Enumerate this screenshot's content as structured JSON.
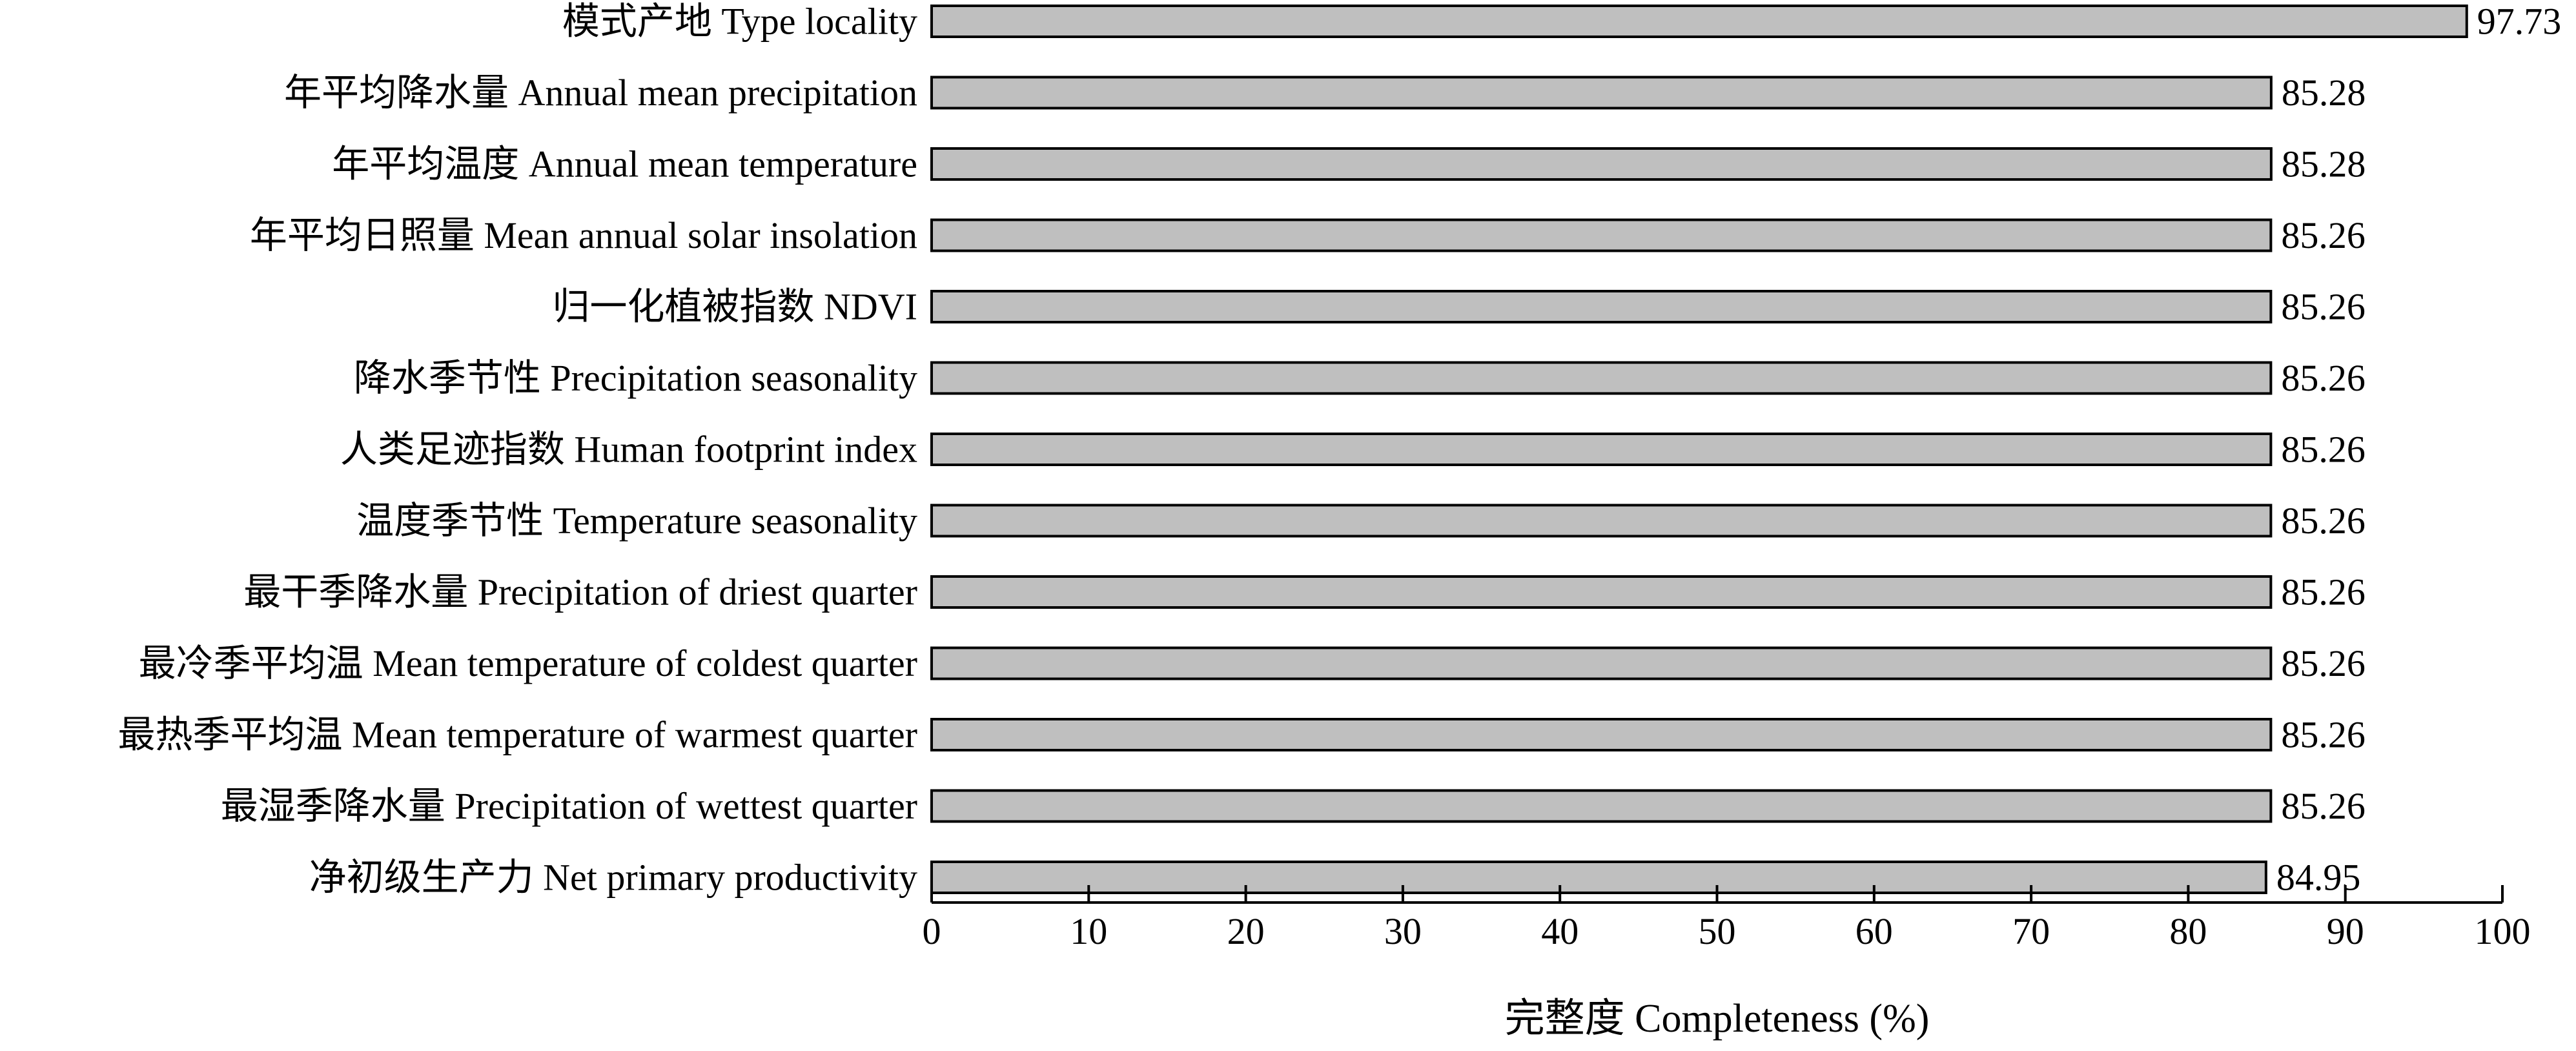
{
  "chart_data": {
    "type": "bar",
    "orientation": "horizontal",
    "categories": [
      "模式产地 Type locality",
      "年平均降水量 Annual mean precipitation",
      "年平均温度 Annual mean temperature",
      "年平均日照量 Mean annual solar insolation",
      "归一化植被指数 NDVI",
      "降水季节性 Precipitation seasonality",
      "人类足迹指数 Human footprint index",
      "温度季节性 Temperature seasonality",
      "最干季降水量 Precipitation of driest quarter",
      "最冷季平均温 Mean temperature of coldest quarter",
      "最热季平均温 Mean temperature of warmest quarter",
      "最湿季降水量 Precipitation of wettest quarter",
      "净初级生产力 Net primary productivity"
    ],
    "values": [
      97.73,
      85.28,
      85.28,
      85.26,
      85.26,
      85.26,
      85.26,
      85.26,
      85.26,
      85.26,
      85.26,
      85.26,
      84.95
    ],
    "value_labels": [
      "97.73",
      "85.28",
      "85.28",
      "85.26",
      "85.26",
      "85.26",
      "85.26",
      "85.26",
      "85.26",
      "85.26",
      "85.26",
      "85.26",
      "84.95"
    ],
    "xlabel": "完整度 Completeness (%)",
    "ylabel": "",
    "title": "",
    "xlim": [
      0,
      100
    ],
    "xticks": [
      0,
      10,
      20,
      30,
      40,
      50,
      60,
      70,
      80,
      90,
      100
    ],
    "grid": false,
    "legend": "none",
    "bar_color": "#bfbfbf",
    "edge_color": "#000000"
  }
}
